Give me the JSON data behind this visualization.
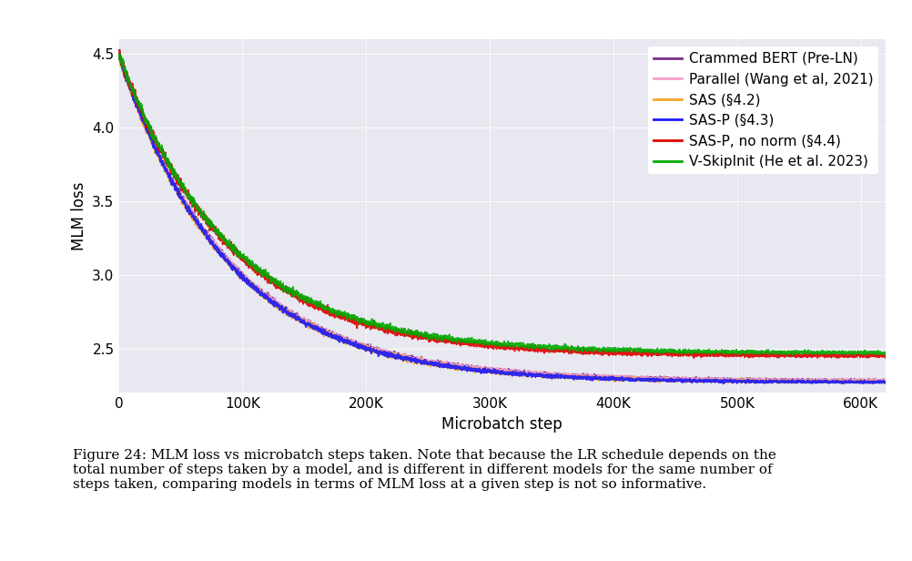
{
  "title": "",
  "xlabel": "Microbatch step",
  "ylabel": "MLM loss",
  "xlim": [
    0,
    620000
  ],
  "ylim": [
    2.2,
    4.6
  ],
  "yticks": [
    2.5,
    3.0,
    3.5,
    4.0,
    4.5
  ],
  "xticks": [
    0,
    100000,
    200000,
    300000,
    400000,
    500000,
    600000
  ],
  "xtick_labels": [
    "0",
    "100K",
    "200K",
    "300K",
    "400K",
    "500K",
    "600K"
  ],
  "background_color": "#e8e8f0",
  "figure_background": "#ffffff",
  "series": [
    {
      "label": "Crammed BERT (Pre-LN)",
      "color": "#7b2d8b"
    },
    {
      "label": "Parallel (Wang et al, 2021)",
      "color": "#f4a0c8"
    },
    {
      "label": "SAS (§4.2)",
      "color": "#f5a623"
    },
    {
      "label": "SAS-P (§4.3)",
      "color": "#1a1aff"
    },
    {
      "label": "SAS-P, no norm (§4.4)",
      "color": "#dd0000"
    },
    {
      "label": "V-SkipInit (He et al. 2023)",
      "color": "#00aa00"
    }
  ],
  "caption": "Figure 24: MLM loss vs microbatch steps taken. Note that because the LR schedule depends on the\ntotal number of steps taken by a model, and is different in different models for the same number of\nsteps taken, comparing models in terms of MLM loss at a given step is not so informative.",
  "caption_fontsize": 11,
  "legend_fontsize": 11,
  "axis_fontsize": 12,
  "tick_fontsize": 11,
  "seed": 42,
  "n_steps": 620000
}
